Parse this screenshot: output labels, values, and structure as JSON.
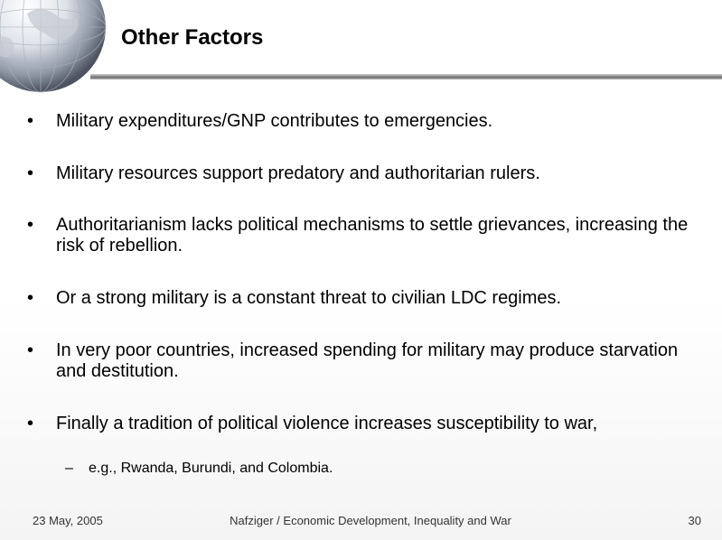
{
  "slide": {
    "title": "Other Factors",
    "bullets": [
      "Military expenditures/GNP contributes to emergencies.",
      "Military resources support predatory and authoritarian rulers.",
      "Authoritarianism lacks political mechanisms to settle grievances, increasing the risk of rebellion.",
      "Or a strong military is a constant threat to civilian LDC regimes.",
      "In very poor countries, increased spending for military may produce starvation and destitution.",
      "Finally a tradition of political violence increases susceptibility to war,"
    ],
    "sub_bullet": "e.g., Rwanda, Burundi, and Colombia.",
    "bullet_marker": "•",
    "sub_marker": "–"
  },
  "footer": {
    "date": "23 May, 2005",
    "source": "Nafziger / Economic Development, Inequality and War",
    "page": "30"
  },
  "icons": {
    "logo": "globe-icon"
  }
}
